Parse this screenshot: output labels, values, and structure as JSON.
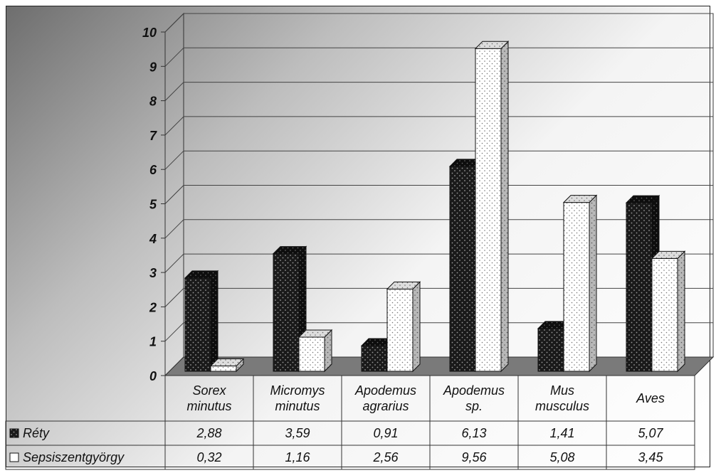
{
  "chart_data": {
    "type": "bar",
    "categories": [
      [
        "Sorex",
        "minutus"
      ],
      [
        "Micromys",
        "minutus"
      ],
      [
        "Apodemus",
        "agrarius"
      ],
      [
        "Apodemus",
        "sp."
      ],
      [
        "Mus",
        "musculus"
      ],
      [
        "Aves"
      ]
    ],
    "series": [
      {
        "name": "Réty",
        "values": [
          2.88,
          3.59,
          0.91,
          6.13,
          1.41,
          5.07
        ],
        "labels": [
          "2,88",
          "3,59",
          "0,91",
          "6,13",
          "1,41",
          "5,07"
        ],
        "color": "#1a1a1a"
      },
      {
        "name": "Sepsiszentgyörgy",
        "values": [
          0.32,
          1.16,
          2.56,
          9.56,
          5.08,
          3.45
        ],
        "labels": [
          "0,32",
          "1,16",
          "2,56",
          "9,56",
          "5,08",
          "3,45"
        ],
        "color": "#ffffff"
      }
    ],
    "yticks": [
      "0",
      "1",
      "2",
      "3",
      "4",
      "5",
      "6",
      "7",
      "8",
      "9",
      "10"
    ],
    "ylim": [
      0,
      10
    ],
    "grid": true,
    "style": "3d-clustered-bar-with-data-table"
  }
}
